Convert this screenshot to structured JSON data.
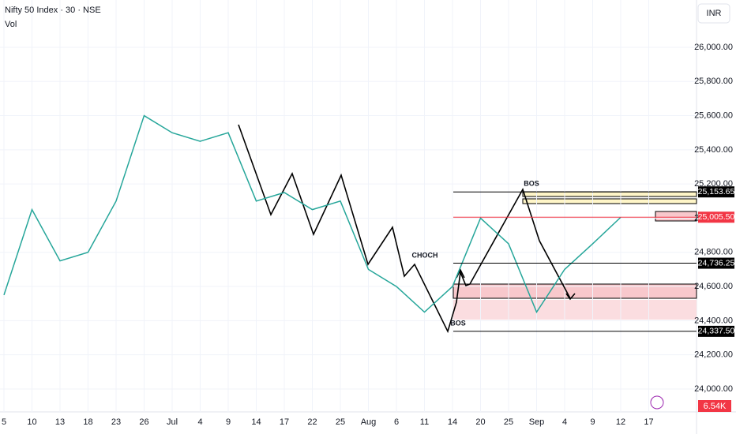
{
  "chart_data": {
    "type": "line",
    "title": "Nifty 50 Index · 30 · NSE",
    "volume_label": "Vol",
    "currency": "INR",
    "volume_value_label": "6.54K",
    "categories": [
      "5",
      "10",
      "13",
      "18",
      "23",
      "26",
      "Jul",
      "4",
      "9",
      "14",
      "17",
      "22",
      "25",
      "Aug",
      "6",
      "11",
      "14",
      "20",
      "25",
      "Sep",
      "4",
      "9",
      "12",
      "17"
    ],
    "series": [
      {
        "name": "Nifty 50 Index",
        "color": "#26a69a",
        "values": [
          24550,
          25050,
          24750,
          24800,
          25100,
          25600,
          25500,
          25450,
          25500,
          25100,
          25150,
          25050,
          25100,
          24700,
          24600,
          24450,
          24600,
          25000,
          24850,
          24450,
          24700,
          24850,
          25005,
          null
        ]
      }
    ],
    "ylim": [
      23875,
      26277
    ],
    "yticks": [
      {
        "value": 24000,
        "label": "24,000.00"
      },
      {
        "value": 24200,
        "label": "24,200.00"
      },
      {
        "value": 24400,
        "label": "24,400.00"
      },
      {
        "value": 24600,
        "label": "24,600.00"
      },
      {
        "value": 24800,
        "label": "24,800.00"
      },
      {
        "value": 25000,
        "label": "25,000.00"
      },
      {
        "value": 25200,
        "label": "25,200.00"
      },
      {
        "value": 25400,
        "label": "25,400.00"
      },
      {
        "value": 25600,
        "label": "25,600.00"
      },
      {
        "value": 25800,
        "label": "25,800.00"
      },
      {
        "value": 26000,
        "label": "26,000.00"
      }
    ],
    "levels": [
      {
        "value": 25153.65,
        "label": "25,153.65"
      },
      {
        "value": 25005.5,
        "label": "25,005.50"
      },
      {
        "value": 24736.25,
        "label": "24,736.25"
      },
      {
        "value": 24337.5,
        "label": "24,337.50"
      }
    ],
    "annotations": [
      "BOS",
      "CHOCH",
      "BOS"
    ],
    "grid": true
  }
}
